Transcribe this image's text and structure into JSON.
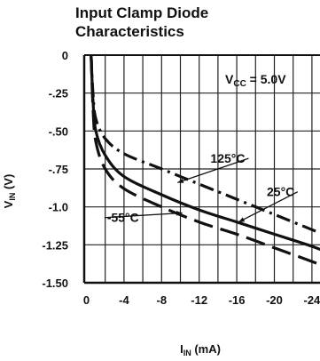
{
  "chart_data": {
    "type": "line",
    "title_lines": [
      "Input Clamp Diode",
      "Characteristics"
    ],
    "xlabel": {
      "main": "I",
      "sub": "IN",
      "unit": " (mA)"
    },
    "ylabel": {
      "main": "V",
      "sub": "IN",
      "unit": " (V)"
    },
    "annotation": {
      "main": "V",
      "sub": "CC",
      "rest": " = 5.0V"
    },
    "xlim": [
      0,
      -26
    ],
    "ylim": [
      0,
      -1.5
    ],
    "x_ticks": [
      0,
      -4,
      -8,
      -12,
      -16,
      -20,
      -24
    ],
    "x_tick_labels": [
      "0",
      "-4",
      "-8",
      "-12",
      "-16",
      "-20",
      "-24"
    ],
    "y_ticks": [
      0,
      -0.25,
      -0.5,
      -0.75,
      -1.0,
      -1.25,
      -1.5
    ],
    "y_tick_labels": [
      "0",
      "-.25",
      "-.50",
      "-.75",
      "-1.0",
      "-1.25",
      "-1.50"
    ],
    "grid": true,
    "series": [
      {
        "name": "125°C",
        "dash": "dashdot",
        "points": [
          [
            -0.5,
            0
          ],
          [
            -0.7,
            -0.25
          ],
          [
            -1.0,
            -0.42
          ],
          [
            -2,
            -0.55
          ],
          [
            -4,
            -0.65
          ],
          [
            -8,
            -0.75
          ],
          [
            -12,
            -0.85
          ],
          [
            -16,
            -0.95
          ],
          [
            -20,
            -1.05
          ],
          [
            -24,
            -1.15
          ],
          [
            -26,
            -1.2
          ]
        ]
      },
      {
        "name": "25°C",
        "dash": "solid",
        "points": [
          [
            -0.5,
            0
          ],
          [
            -0.7,
            -0.3
          ],
          [
            -1.0,
            -0.5
          ],
          [
            -2,
            -0.66
          ],
          [
            -4,
            -0.8
          ],
          [
            -8,
            -0.92
          ],
          [
            -12,
            -1.02
          ],
          [
            -16,
            -1.1
          ],
          [
            -20,
            -1.18
          ],
          [
            -24,
            -1.26
          ],
          [
            -26,
            -1.31
          ]
        ]
      },
      {
        "name": "-55°C",
        "dash": "dashed",
        "points": [
          [
            -0.5,
            0
          ],
          [
            -0.7,
            -0.35
          ],
          [
            -1.0,
            -0.57
          ],
          [
            -2,
            -0.75
          ],
          [
            -4,
            -0.88
          ],
          [
            -8,
            -1.0
          ],
          [
            -12,
            -1.1
          ],
          [
            -16,
            -1.18
          ],
          [
            -20,
            -1.27
          ],
          [
            -24,
            -1.36
          ],
          [
            -26,
            -1.41
          ]
        ]
      }
    ]
  }
}
